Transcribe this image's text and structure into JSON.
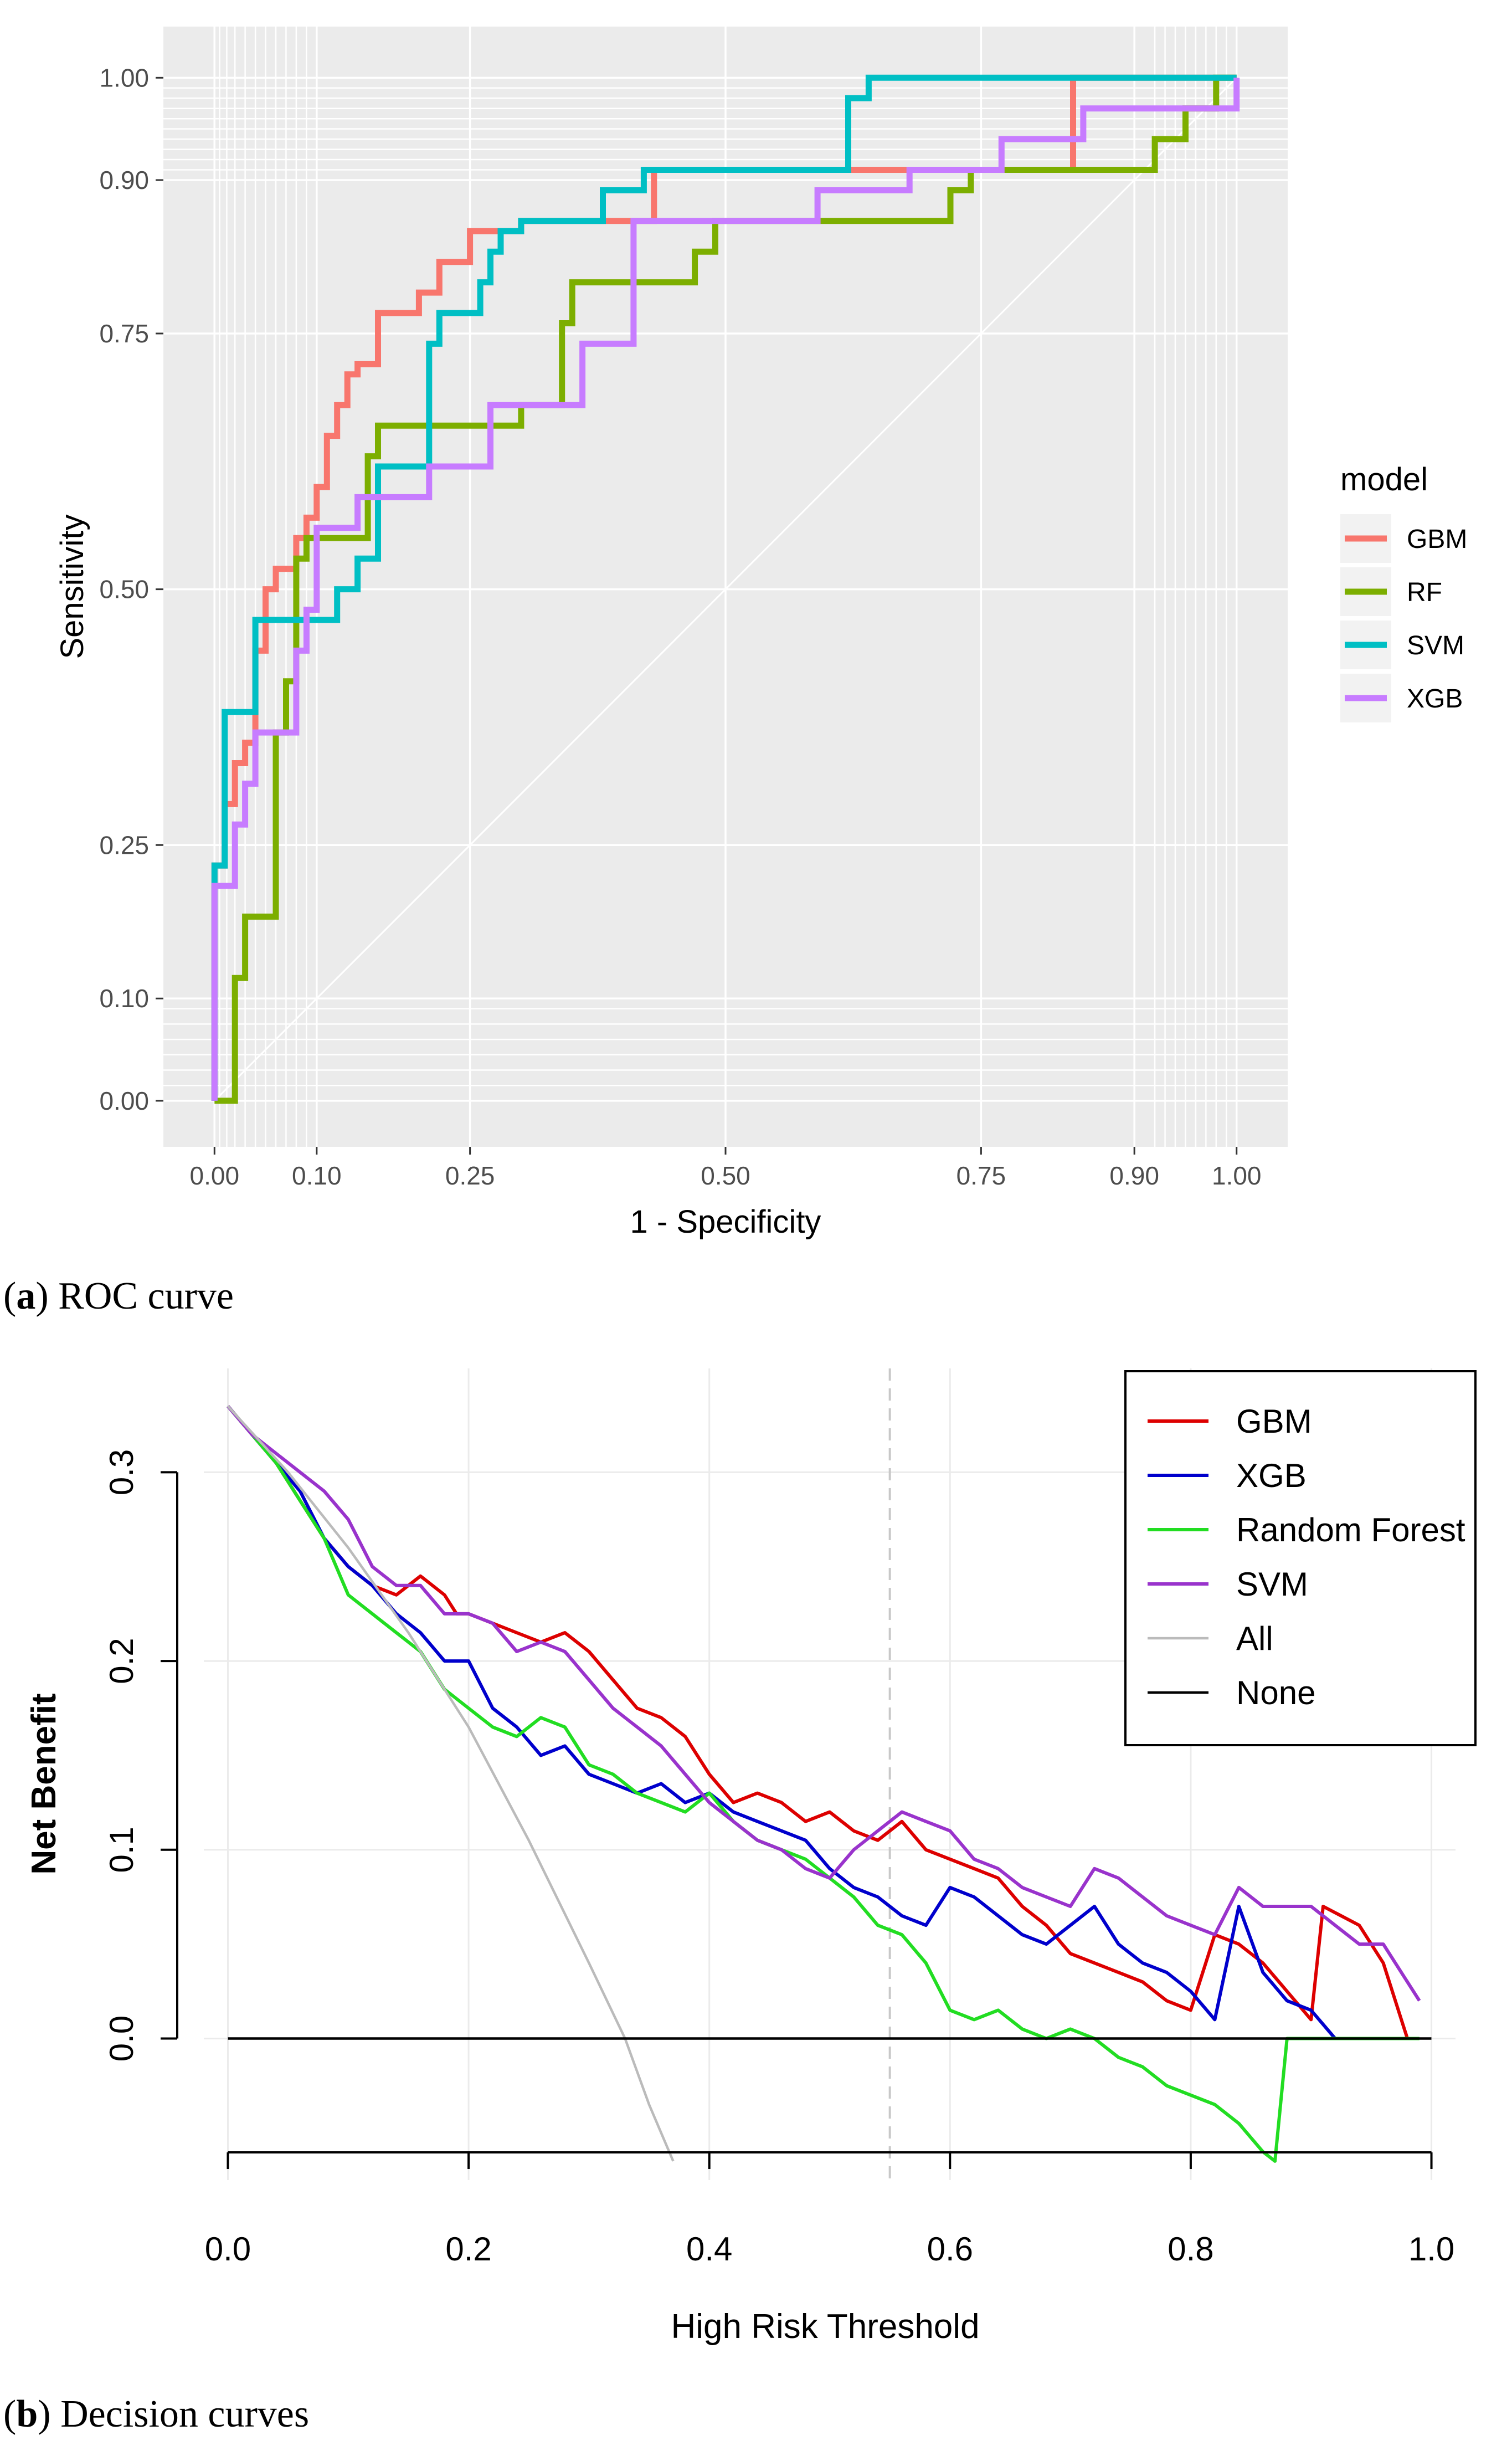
{
  "chart_data": [
    {
      "type": "line",
      "panel": "a",
      "caption_label": "a",
      "caption_text": "ROC curve",
      "xlabel": "1 - Specificity",
      "ylabel": "Sensitivity",
      "xlim": [
        -0.05,
        1.05
      ],
      "ylim": [
        -0.045,
        1.05
      ],
      "x_ticks": [
        0.0,
        0.1,
        0.25,
        0.5,
        0.75,
        0.9,
        1.0
      ],
      "x_tick_labels": [
        "0.00",
        "0.10",
        "0.25",
        "0.50",
        "0.75",
        "0.90",
        "1.00"
      ],
      "y_ticks": [
        0.0,
        0.1,
        0.25,
        0.5,
        0.75,
        0.9,
        1.0
      ],
      "y_tick_labels": [
        "0.00",
        "0.10",
        "0.25",
        "0.50",
        "0.75",
        "0.90",
        "1.00"
      ],
      "legend_title": "model",
      "legend_position": "right",
      "diagonal": true,
      "series": [
        {
          "name": "GBM",
          "color": "#F8766D",
          "x": [
            0,
            0,
            0.01,
            0.01,
            0.02,
            0.02,
            0.03,
            0.03,
            0.04,
            0.04,
            0.05,
            0.05,
            0.06,
            0.06,
            0.08,
            0.08,
            0.09,
            0.09,
            0.1,
            0.1,
            0.11,
            0.11,
            0.12,
            0.12,
            0.13,
            0.13,
            0.14,
            0.14,
            0.16,
            0.16,
            0.2,
            0.2,
            0.22,
            0.22,
            0.25,
            0.25,
            0.3,
            0.3,
            0.43,
            0.43,
            0.84,
            0.84,
            1.0
          ],
          "y": [
            0,
            0.23,
            0.23,
            0.29,
            0.29,
            0.33,
            0.33,
            0.35,
            0.35,
            0.44,
            0.44,
            0.5,
            0.5,
            0.52,
            0.52,
            0.55,
            0.55,
            0.57,
            0.57,
            0.6,
            0.6,
            0.65,
            0.65,
            0.68,
            0.68,
            0.71,
            0.71,
            0.72,
            0.72,
            0.77,
            0.77,
            0.79,
            0.79,
            0.82,
            0.82,
            0.85,
            0.85,
            0.86,
            0.86,
            0.91,
            0.91,
            1.0,
            1.0
          ]
        },
        {
          "name": "RF",
          "color": "#7CAE00",
          "x": [
            0,
            0.02,
            0.02,
            0.03,
            0.03,
            0.06,
            0.06,
            0.07,
            0.07,
            0.08,
            0.08,
            0.09,
            0.09,
            0.15,
            0.15,
            0.16,
            0.16,
            0.3,
            0.3,
            0.34,
            0.34,
            0.35,
            0.35,
            0.47,
            0.47,
            0.49,
            0.49,
            0.72,
            0.72,
            0.74,
            0.74,
            0.92,
            0.92,
            0.95,
            0.95,
            0.98,
            0.98,
            1.0
          ],
          "y": [
            0,
            0,
            0.12,
            0.12,
            0.18,
            0.18,
            0.36,
            0.36,
            0.41,
            0.41,
            0.53,
            0.53,
            0.55,
            0.55,
            0.63,
            0.63,
            0.66,
            0.66,
            0.68,
            0.68,
            0.76,
            0.76,
            0.8,
            0.8,
            0.83,
            0.83,
            0.86,
            0.86,
            0.89,
            0.89,
            0.91,
            0.91,
            0.94,
            0.94,
            0.97,
            0.97,
            1.0,
            1.0
          ]
        },
        {
          "name": "SVM",
          "color": "#00BFC4",
          "x": [
            0,
            0,
            0.01,
            0.01,
            0.04,
            0.04,
            0.12,
            0.12,
            0.14,
            0.14,
            0.16,
            0.16,
            0.21,
            0.21,
            0.22,
            0.22,
            0.26,
            0.26,
            0.27,
            0.27,
            0.28,
            0.28,
            0.3,
            0.3,
            0.38,
            0.38,
            0.42,
            0.42,
            0.62,
            0.62,
            0.64,
            0.64,
            1.0
          ],
          "y": [
            0,
            0.23,
            0.23,
            0.38,
            0.38,
            0.47,
            0.47,
            0.5,
            0.5,
            0.53,
            0.53,
            0.62,
            0.62,
            0.74,
            0.74,
            0.77,
            0.77,
            0.8,
            0.8,
            0.83,
            0.83,
            0.85,
            0.85,
            0.86,
            0.86,
            0.89,
            0.89,
            0.91,
            0.91,
            0.98,
            0.98,
            1.0,
            1.0
          ]
        },
        {
          "name": "XGB",
          "color": "#C77CFF",
          "x": [
            0,
            0,
            0.02,
            0.02,
            0.03,
            0.03,
            0.04,
            0.04,
            0.08,
            0.08,
            0.09,
            0.09,
            0.1,
            0.1,
            0.14,
            0.14,
            0.21,
            0.21,
            0.27,
            0.27,
            0.36,
            0.36,
            0.41,
            0.41,
            0.59,
            0.59,
            0.68,
            0.68,
            0.77,
            0.77,
            0.85,
            0.85,
            1.0,
            1.0
          ],
          "y": [
            0,
            0.21,
            0.21,
            0.27,
            0.27,
            0.31,
            0.31,
            0.36,
            0.36,
            0.44,
            0.44,
            0.48,
            0.48,
            0.56,
            0.56,
            0.59,
            0.59,
            0.62,
            0.62,
            0.68,
            0.68,
            0.74,
            0.74,
            0.86,
            0.86,
            0.89,
            0.89,
            0.91,
            0.91,
            0.94,
            0.94,
            0.97,
            0.97,
            1.0
          ]
        }
      ]
    },
    {
      "type": "line",
      "panel": "b",
      "caption_label": "b",
      "caption_text": "Decision curves",
      "xlabel": "High Risk Threshold",
      "ylabel": "Net Benefit",
      "xlim": [
        -0.02,
        1.02
      ],
      "ylim": [
        -0.075,
        0.355
      ],
      "x_ticks": [
        0.0,
        0.2,
        0.4,
        0.6,
        0.8,
        1.0
      ],
      "x_tick_labels": [
        "0.0",
        "0.2",
        "0.4",
        "0.6",
        "0.8",
        "1.0"
      ],
      "y_ticks": [
        0.0,
        0.1,
        0.2,
        0.3
      ],
      "y_tick_labels": [
        "0.0",
        "0.1",
        "0.2",
        "0.3"
      ],
      "reference_vline": 0.55,
      "legend_position": "top-right",
      "series": [
        {
          "name": "GBM",
          "color": "#DD0000",
          "x": [
            0,
            0.02,
            0.04,
            0.06,
            0.08,
            0.1,
            0.12,
            0.14,
            0.16,
            0.18,
            0.19,
            0.2,
            0.22,
            0.24,
            0.26,
            0.28,
            0.3,
            0.32,
            0.34,
            0.36,
            0.38,
            0.4,
            0.42,
            0.44,
            0.46,
            0.48,
            0.5,
            0.52,
            0.54,
            0.56,
            0.58,
            0.6,
            0.62,
            0.64,
            0.66,
            0.68,
            0.7,
            0.72,
            0.74,
            0.76,
            0.78,
            0.8,
            0.82,
            0.84,
            0.86,
            0.88,
            0.9,
            0.91,
            0.94,
            0.96,
            0.98
          ],
          "y": [
            0.335,
            0.32,
            0.305,
            0.285,
            0.265,
            0.25,
            0.24,
            0.235,
            0.245,
            0.235,
            0.225,
            0.225,
            0.22,
            0.215,
            0.21,
            0.215,
            0.205,
            0.19,
            0.175,
            0.17,
            0.16,
            0.14,
            0.125,
            0.13,
            0.125,
            0.115,
            0.12,
            0.11,
            0.105,
            0.115,
            0.1,
            0.095,
            0.09,
            0.085,
            0.07,
            0.06,
            0.045,
            0.04,
            0.035,
            0.03,
            0.02,
            0.015,
            0.055,
            0.05,
            0.04,
            0.025,
            0.01,
            0.07,
            0.06,
            0.04,
            0.0
          ]
        },
        {
          "name": "XGB",
          "color": "#0000CC",
          "x": [
            0,
            0.02,
            0.04,
            0.06,
            0.08,
            0.1,
            0.12,
            0.14,
            0.16,
            0.18,
            0.2,
            0.22,
            0.24,
            0.26,
            0.28,
            0.3,
            0.32,
            0.34,
            0.36,
            0.38,
            0.4,
            0.42,
            0.44,
            0.46,
            0.48,
            0.5,
            0.52,
            0.54,
            0.56,
            0.58,
            0.6,
            0.62,
            0.64,
            0.66,
            0.68,
            0.7,
            0.72,
            0.74,
            0.76,
            0.78,
            0.8,
            0.82,
            0.84,
            0.86,
            0.88,
            0.9,
            0.92
          ],
          "y": [
            0.335,
            0.32,
            0.305,
            0.29,
            0.265,
            0.25,
            0.24,
            0.225,
            0.215,
            0.2,
            0.2,
            0.175,
            0.165,
            0.15,
            0.155,
            0.14,
            0.135,
            0.13,
            0.135,
            0.125,
            0.13,
            0.12,
            0.115,
            0.11,
            0.105,
            0.09,
            0.08,
            0.075,
            0.065,
            0.06,
            0.08,
            0.075,
            0.065,
            0.055,
            0.05,
            0.06,
            0.07,
            0.05,
            0.04,
            0.035,
            0.025,
            0.01,
            0.07,
            0.035,
            0.02,
            0.015,
            0.0
          ]
        },
        {
          "name": "Random Forest",
          "color": "#22DD22",
          "x": [
            0,
            0.02,
            0.04,
            0.06,
            0.08,
            0.1,
            0.12,
            0.14,
            0.16,
            0.18,
            0.2,
            0.22,
            0.24,
            0.26,
            0.28,
            0.3,
            0.32,
            0.34,
            0.36,
            0.38,
            0.4,
            0.42,
            0.44,
            0.46,
            0.48,
            0.5,
            0.52,
            0.54,
            0.56,
            0.58,
            0.6,
            0.62,
            0.64,
            0.66,
            0.68,
            0.7,
            0.72,
            0.74,
            0.76,
            0.78,
            0.8,
            0.82,
            0.84,
            0.86,
            0.87,
            0.88,
            0.9,
            0.92,
            0.95,
            0.99
          ],
          "y": [
            0.335,
            0.32,
            0.305,
            0.285,
            0.265,
            0.235,
            0.225,
            0.215,
            0.205,
            0.185,
            0.175,
            0.165,
            0.16,
            0.17,
            0.165,
            0.145,
            0.14,
            0.13,
            0.125,
            0.12,
            0.13,
            0.115,
            0.105,
            0.1,
            0.095,
            0.085,
            0.075,
            0.06,
            0.055,
            0.04,
            0.015,
            0.01,
            0.015,
            0.005,
            0.0,
            0.005,
            0.0,
            -0.01,
            -0.015,
            -0.025,
            -0.03,
            -0.035,
            -0.045,
            -0.06,
            -0.065,
            0.0,
            0.0,
            0.0,
            0.0,
            0.0
          ]
        },
        {
          "name": "SVM",
          "color": "#9933CC",
          "x": [
            0,
            0.02,
            0.04,
            0.06,
            0.08,
            0.1,
            0.12,
            0.14,
            0.16,
            0.18,
            0.2,
            0.22,
            0.24,
            0.26,
            0.28,
            0.3,
            0.32,
            0.34,
            0.36,
            0.38,
            0.4,
            0.42,
            0.44,
            0.46,
            0.48,
            0.5,
            0.52,
            0.54,
            0.56,
            0.58,
            0.6,
            0.62,
            0.64,
            0.66,
            0.68,
            0.7,
            0.72,
            0.74,
            0.76,
            0.78,
            0.8,
            0.82,
            0.84,
            0.86,
            0.88,
            0.9,
            0.92,
            0.94,
            0.96,
            0.98,
            0.99
          ],
          "y": [
            0.335,
            0.32,
            0.31,
            0.3,
            0.29,
            0.275,
            0.25,
            0.24,
            0.24,
            0.225,
            0.225,
            0.22,
            0.205,
            0.21,
            0.205,
            0.19,
            0.175,
            0.165,
            0.155,
            0.14,
            0.125,
            0.115,
            0.105,
            0.1,
            0.09,
            0.085,
            0.1,
            0.11,
            0.12,
            0.115,
            0.11,
            0.095,
            0.09,
            0.08,
            0.075,
            0.07,
            0.09,
            0.085,
            0.075,
            0.065,
            0.06,
            0.055,
            0.08,
            0.07,
            0.07,
            0.07,
            0.06,
            0.05,
            0.05,
            0.03,
            0.02
          ]
        },
        {
          "name": "All",
          "color": "#BBBBBB",
          "x": [
            0,
            0.05,
            0.1,
            0.15,
            0.2,
            0.25,
            0.3,
            0.33,
            0.35,
            0.37
          ],
          "y": [
            0.335,
            0.3,
            0.26,
            0.215,
            0.165,
            0.105,
            0.04,
            0.0,
            -0.035,
            -0.065
          ]
        },
        {
          "name": "None",
          "color": "#000000",
          "x": [
            0,
            1
          ],
          "y": [
            0,
            0
          ]
        }
      ]
    }
  ]
}
